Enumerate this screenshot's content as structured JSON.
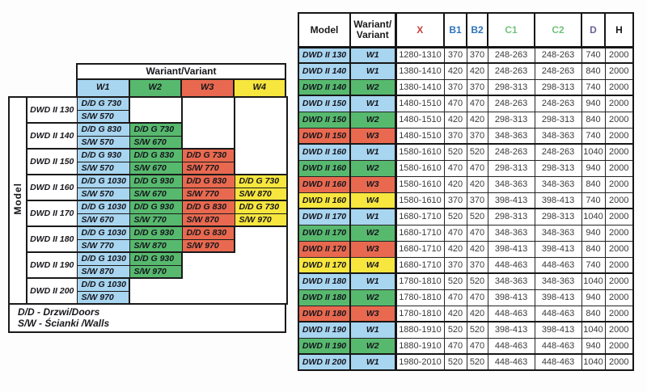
{
  "colors": {
    "variant_fill": {
      "w1": "#a8d5ef",
      "w2": "#57b96e",
      "w3": "#e8694f",
      "w4": "#f7e63e"
    },
    "header_text": {
      "x": "#cb3d3c",
      "b": "#2e74b9",
      "c": "#72c27b",
      "d": "#6d5f9b",
      "default": "#1a1a1a"
    }
  },
  "left_table": {
    "title": "Wariant/Variant",
    "axis_label": "Model",
    "variant_headers": [
      "W1",
      "W2",
      "W3",
      "W4"
    ],
    "legend": [
      "D/D - Drzwi/Doors",
      "S/W - Ścianki /Walls"
    ],
    "groups": [
      {
        "model": "DWD II 130",
        "w1": {
          "dd": "D/D G 730",
          "sw": "S/W 570"
        }
      },
      {
        "model": "DWD II 140",
        "w1": {
          "dd": "D/D G 830",
          "sw": "S/W 570"
        },
        "w2": {
          "dd": "D/D G 730",
          "sw": "S/W 670"
        }
      },
      {
        "model": "DWD II 150",
        "w1": {
          "dd": "D/D G 930",
          "sw": "S/W 570"
        },
        "w2": {
          "dd": "D/D G 830",
          "sw": "S/W 670"
        },
        "w3": {
          "dd": "D/D G 730",
          "sw": "S/W 770"
        }
      },
      {
        "model": "DWD II 160",
        "w1": {
          "dd": "D/D G 1030",
          "sw": "S/W 570"
        },
        "w2": {
          "dd": "D/D G 930",
          "sw": "S/W 670"
        },
        "w3": {
          "dd": "D/D G 830",
          "sw": "S/W 770"
        },
        "w4": {
          "dd": "D/D G 730",
          "sw": "S/W 870"
        }
      },
      {
        "model": "DWD II 170",
        "w1": {
          "dd": "D/D G 1030",
          "sw": "S/W 670"
        },
        "w2": {
          "dd": "D/D G 930",
          "sw": "S/W 770"
        },
        "w3": {
          "dd": "D/D G 830",
          "sw": "S/W 870"
        },
        "w4": {
          "dd": "D/D G 730",
          "sw": "S/W 970"
        }
      },
      {
        "model": "DWD II 180",
        "w1": {
          "dd": "D/D G 1030",
          "sw": "S/W 770"
        },
        "w2": {
          "dd": "D/D G 930",
          "sw": "S/W 870"
        },
        "w3": {
          "dd": "D/D G 830",
          "sw": "S/W 970"
        }
      },
      {
        "model": "DWD II 190",
        "w1": {
          "dd": "D/D G 1030",
          "sw": "S/W 870"
        },
        "w2": {
          "dd": "D/D G 930",
          "sw": "S/W 970"
        }
      },
      {
        "model": "DWD II 200",
        "w1": {
          "dd": "D/D G 1030",
          "sw": "S/W 970"
        }
      }
    ]
  },
  "right_table": {
    "headers": {
      "model": "Model",
      "variant_line1": "Wariant/",
      "variant_line2": "Variant",
      "x": "X",
      "b1": "B1",
      "b2": "B2",
      "c1": "C1",
      "c2": "C2",
      "d": "D",
      "h": "H"
    },
    "rows": [
      {
        "model": "DWD II 130",
        "variant": "W1",
        "x": "1280-1310",
        "b1": "370",
        "b2": "370",
        "c1": "248-263",
        "c2": "248-263",
        "d": "740",
        "h": "2000"
      },
      {
        "model": "DWD II 140",
        "variant": "W1",
        "x": "1380-1410",
        "b1": "420",
        "b2": "420",
        "c1": "248-263",
        "c2": "248-263",
        "d": "840",
        "h": "2000"
      },
      {
        "model": "DWD II 140",
        "variant": "W2",
        "x": "1380-1410",
        "b1": "370",
        "b2": "370",
        "c1": "298-313",
        "c2": "298-313",
        "d": "740",
        "h": "2000"
      },
      {
        "model": "DWD II 150",
        "variant": "W1",
        "x": "1480-1510",
        "b1": "470",
        "b2": "470",
        "c1": "248-263",
        "c2": "248-263",
        "d": "940",
        "h": "2000"
      },
      {
        "model": "DWD II 150",
        "variant": "W2",
        "x": "1480-1510",
        "b1": "420",
        "b2": "420",
        "c1": "298-313",
        "c2": "298-313",
        "d": "840",
        "h": "2000"
      },
      {
        "model": "DWD II 150",
        "variant": "W3",
        "x": "1480-1510",
        "b1": "370",
        "b2": "370",
        "c1": "348-363",
        "c2": "348-363",
        "d": "740",
        "h": "2000"
      },
      {
        "model": "DWD II 160",
        "variant": "W1",
        "x": "1580-1610",
        "b1": "520",
        "b2": "520",
        "c1": "248-263",
        "c2": "248-263",
        "d": "1040",
        "h": "2000"
      },
      {
        "model": "DWD II 160",
        "variant": "W2",
        "x": "1580-1610",
        "b1": "470",
        "b2": "470",
        "c1": "298-313",
        "c2": "298-313",
        "d": "940",
        "h": "2000"
      },
      {
        "model": "DWD II 160",
        "variant": "W3",
        "x": "1580-1610",
        "b1": "420",
        "b2": "420",
        "c1": "348-363",
        "c2": "348-363",
        "d": "840",
        "h": "2000"
      },
      {
        "model": "DWD II 160",
        "variant": "W4",
        "x": "1580-1610",
        "b1": "370",
        "b2": "370",
        "c1": "398-413",
        "c2": "398-413",
        "d": "740",
        "h": "2000"
      },
      {
        "model": "DWD II 170",
        "variant": "W1",
        "x": "1680-1710",
        "b1": "520",
        "b2": "520",
        "c1": "298-313",
        "c2": "298-313",
        "d": "1040",
        "h": "2000"
      },
      {
        "model": "DWD II 170",
        "variant": "W2",
        "x": "1680-1710",
        "b1": "470",
        "b2": "470",
        "c1": "348-363",
        "c2": "348-363",
        "d": "940",
        "h": "2000"
      },
      {
        "model": "DWD II 170",
        "variant": "W3",
        "x": "1680-1710",
        "b1": "420",
        "b2": "420",
        "c1": "398-413",
        "c2": "398-413",
        "d": "840",
        "h": "2000"
      },
      {
        "model": "DWD II 170",
        "variant": "W4",
        "x": "1680-1710",
        "b1": "370",
        "b2": "370",
        "c1": "448-463",
        "c2": "448-463",
        "d": "740",
        "h": "2000"
      },
      {
        "model": "DWD II 180",
        "variant": "W1",
        "x": "1780-1810",
        "b1": "520",
        "b2": "520",
        "c1": "348-363",
        "c2": "348-363",
        "d": "1040",
        "h": "2000"
      },
      {
        "model": "DWD II 180",
        "variant": "W2",
        "x": "1780-1810",
        "b1": "470",
        "b2": "470",
        "c1": "398-413",
        "c2": "398-413",
        "d": "940",
        "h": "2000"
      },
      {
        "model": "DWD II 180",
        "variant": "W3",
        "x": "1780-1810",
        "b1": "420",
        "b2": "420",
        "c1": "448-463",
        "c2": "448-463",
        "d": "840",
        "h": "2000"
      },
      {
        "model": "DWD II 190",
        "variant": "W1",
        "x": "1880-1910",
        "b1": "520",
        "b2": "520",
        "c1": "398-413",
        "c2": "398-413",
        "d": "1040",
        "h": "2000"
      },
      {
        "model": "DWD II 190",
        "variant": "W2",
        "x": "1880-1910",
        "b1": "470",
        "b2": "470",
        "c1": "448-463",
        "c2": "448-463",
        "d": "940",
        "h": "2000"
      },
      {
        "model": "DWD II 200",
        "variant": "W1",
        "x": "1980-2010",
        "b1": "520",
        "b2": "520",
        "c1": "448-463",
        "c2": "448-463",
        "d": "1040",
        "h": "2000"
      }
    ]
  }
}
